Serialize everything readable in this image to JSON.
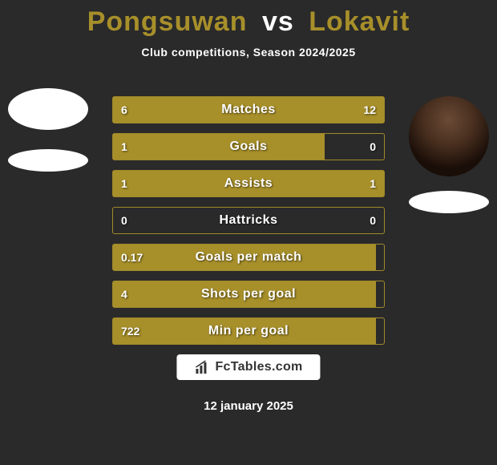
{
  "title": {
    "player1": "Pongsuwan",
    "vs": "vs",
    "player2": "Lokavit"
  },
  "subtitle": "Club competitions, Season 2024/2025",
  "title_colors": {
    "player": "#a78f2a",
    "vs": "#ffffff"
  },
  "title_fontsize": 34,
  "bar_style": {
    "fill_color": "#a78f2a",
    "border_color": "#a08a2a",
    "track_color": "#2a2a2a",
    "text_color": "#ffffff",
    "height": 34,
    "gap": 12,
    "label_fontsize": 16,
    "value_fontsize": 14
  },
  "stats": [
    {
      "label": "Matches",
      "left_val": "6",
      "right_val": "12",
      "left_pct": 33,
      "right_pct": 67
    },
    {
      "label": "Goals",
      "left_val": "1",
      "right_val": "0",
      "left_pct": 78,
      "right_pct": 0
    },
    {
      "label": "Assists",
      "left_val": "1",
      "right_val": "1",
      "left_pct": 50,
      "right_pct": 50
    },
    {
      "label": "Hattricks",
      "left_val": "0",
      "right_val": "0",
      "left_pct": 0,
      "right_pct": 0
    },
    {
      "label": "Goals per match",
      "left_val": "0.17",
      "right_val": "",
      "left_pct": 97,
      "right_pct": 0
    },
    {
      "label": "Shots per goal",
      "left_val": "4",
      "right_val": "",
      "left_pct": 97,
      "right_pct": 0
    },
    {
      "label": "Min per goal",
      "left_val": "722",
      "right_val": "",
      "left_pct": 97,
      "right_pct": 0
    }
  ],
  "brand": "FcTables.com",
  "date": "12 january 2025",
  "background_color": "#2a2a2a"
}
